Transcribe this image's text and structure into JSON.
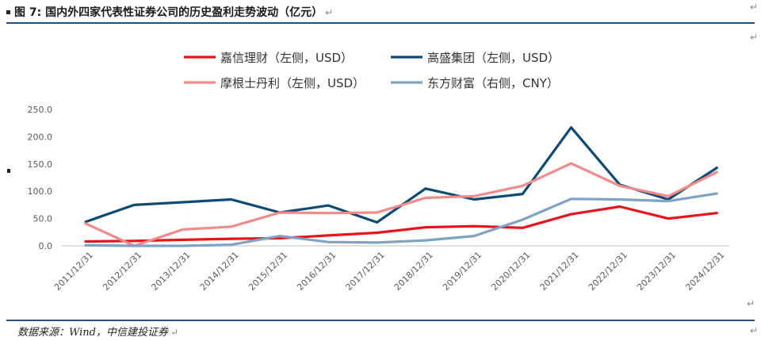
{
  "header": {
    "title": "图 7: 国内外四家代表性证券公司的历史盈利走势波动（亿元）",
    "return_mark": "↵"
  },
  "footer": {
    "source": "数据来源：Wind，中信建投证券",
    "return_mark": "↵"
  },
  "chart_data": {
    "type": "line",
    "categories": [
      "2011/12/31",
      "2012/12/31",
      "2013/12/31",
      "2014/12/31",
      "2015/12/31",
      "2016/12/31",
      "2017/12/31",
      "2018/12/31",
      "2019/12/31",
      "2020/12/31",
      "2021/12/31",
      "2022/12/31",
      "2023/12/31",
      "2024/12/31"
    ],
    "ylim": [
      0,
      250
    ],
    "yticks": [
      "0.0",
      "50.0",
      "100.0",
      "150.0",
      "200.0",
      "250.0"
    ],
    "grid": false,
    "legend_position": "top",
    "series": [
      {
        "name": "嘉信理财（左侧，USD）",
        "color": "#e8141b",
        "values": [
          8,
          9,
          11,
          13,
          14,
          19,
          24,
          34,
          36,
          33,
          58,
          72,
          50,
          60
        ]
      },
      {
        "name": "高盛集团（左侧，USD）",
        "color": "#0e4a76",
        "values": [
          44,
          75,
          80,
          85,
          61,
          74,
          43,
          105,
          85,
          95,
          217,
          112,
          85,
          143
        ]
      },
      {
        "name": "摩根士丹利（左侧，USD）",
        "color": "#f28a8a",
        "values": [
          41,
          0,
          30,
          35,
          61,
          60,
          61,
          88,
          91,
          110,
          151,
          110,
          91,
          135
        ]
      },
      {
        "name": "东方财富（右侧，CNY）",
        "color": "#7fa3c2",
        "values": [
          1,
          0,
          0,
          2,
          18,
          7,
          6,
          10,
          18,
          48,
          86,
          85,
          82,
          96
        ]
      }
    ]
  }
}
